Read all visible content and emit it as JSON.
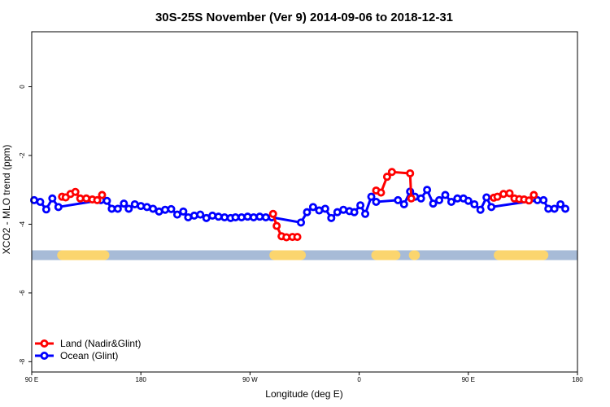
{
  "chart_data": {
    "type": "line",
    "title": "30S-25S November (Ver 9)   2014-09-06 to 2018-12-31",
    "xlabel": "Longitude (deg E)",
    "ylabel": "XCO2 - MLO trend (ppm)",
    "xlim": [
      90,
      540
    ],
    "ylim": [
      -8.3,
      1.6
    ],
    "x_ticks": [
      {
        "value": 90,
        "label": "90 E"
      },
      {
        "value": 180,
        "label": "180"
      },
      {
        "value": 270,
        "label": "90 W"
      },
      {
        "value": 360,
        "label": "0"
      },
      {
        "value": 450,
        "label": "90 E"
      },
      {
        "value": 540,
        "label": "180"
      }
    ],
    "y_ticks": [
      {
        "value": 0,
        "label": "0"
      },
      {
        "value": -2,
        "label": "-2"
      },
      {
        "value": -4,
        "label": "-4"
      },
      {
        "value": -6,
        "label": "-6"
      },
      {
        "value": -8,
        "label": "-8"
      }
    ],
    "land_mask_band": {
      "y": -4.9,
      "ocean_color": "#a7bbd7",
      "land_color": "#fbd56e",
      "land_ranges": [
        [
          115,
          150
        ],
        [
          290,
          312
        ],
        [
          374,
          390
        ],
        [
          405,
          406
        ],
        [
          475,
          512
        ]
      ]
    },
    "legend": {
      "position": "bottom-left"
    },
    "series": [
      {
        "name": "Land (Nadir&Glint)",
        "color": "#ff0000",
        "points": [
          [
            115,
            -3.2
          ],
          [
            118,
            -3.22
          ],
          [
            122,
            -3.12
          ],
          [
            126,
            -3.06
          ],
          [
            130,
            -3.25
          ],
          [
            135,
            -3.25
          ],
          [
            140,
            -3.28
          ],
          [
            144,
            -3.3
          ],
          [
            148,
            -3.15
          ],
          [
            289,
            -3.7
          ],
          [
            292,
            -4.05
          ],
          [
            296,
            -4.35
          ],
          [
            300,
            -4.38
          ],
          [
            305,
            -4.37
          ],
          [
            309,
            -4.37
          ],
          [
            374,
            -3.02
          ],
          [
            378,
            -3.08
          ],
          [
            383,
            -2.62
          ],
          [
            387,
            -2.48
          ],
          [
            402,
            -2.52
          ],
          [
            403,
            -3.25
          ],
          [
            471,
            -3.23
          ],
          [
            474,
            -3.2
          ],
          [
            479,
            -3.12
          ],
          [
            484,
            -3.1
          ],
          [
            488,
            -3.25
          ],
          [
            492,
            -3.27
          ],
          [
            496,
            -3.28
          ],
          [
            500,
            -3.31
          ],
          [
            504,
            -3.15
          ]
        ]
      },
      {
        "name": "Ocean (Glint)",
        "color": "#0000ff",
        "points": [
          [
            92,
            -3.3
          ],
          [
            97,
            -3.35
          ],
          [
            102,
            -3.57
          ],
          [
            107,
            -3.25
          ],
          [
            112,
            -3.5
          ],
          [
            147,
            -3.3
          ],
          [
            152,
            -3.32
          ],
          [
            156,
            -3.55
          ],
          [
            161,
            -3.55
          ],
          [
            166,
            -3.4
          ],
          [
            170,
            -3.55
          ],
          [
            175,
            -3.42
          ],
          [
            180,
            -3.47
          ],
          [
            185,
            -3.5
          ],
          [
            190,
            -3.55
          ],
          [
            195,
            -3.63
          ],
          [
            200,
            -3.58
          ],
          [
            205,
            -3.56
          ],
          [
            210,
            -3.72
          ],
          [
            215,
            -3.63
          ],
          [
            219,
            -3.8
          ],
          [
            224,
            -3.75
          ],
          [
            229,
            -3.72
          ],
          [
            234,
            -3.82
          ],
          [
            239,
            -3.75
          ],
          [
            244,
            -3.78
          ],
          [
            249,
            -3.8
          ],
          [
            254,
            -3.82
          ],
          [
            258,
            -3.8
          ],
          [
            263,
            -3.8
          ],
          [
            268,
            -3.78
          ],
          [
            273,
            -3.8
          ],
          [
            278,
            -3.78
          ],
          [
            283,
            -3.8
          ],
          [
            288,
            -3.8
          ],
          [
            312,
            -3.95
          ],
          [
            317,
            -3.65
          ],
          [
            322,
            -3.5
          ],
          [
            327,
            -3.6
          ],
          [
            332,
            -3.55
          ],
          [
            337,
            -3.82
          ],
          [
            342,
            -3.65
          ],
          [
            347,
            -3.58
          ],
          [
            352,
            -3.62
          ],
          [
            356,
            -3.65
          ],
          [
            361,
            -3.45
          ],
          [
            365,
            -3.7
          ],
          [
            370,
            -3.2
          ],
          [
            374,
            -3.35
          ],
          [
            392,
            -3.3
          ],
          [
            397,
            -3.42
          ],
          [
            402,
            -3.05
          ],
          [
            406,
            -3.2
          ],
          [
            411,
            -3.25
          ],
          [
            416,
            -3.0
          ],
          [
            421,
            -3.4
          ],
          [
            426,
            -3.3
          ],
          [
            431,
            -3.15
          ],
          [
            436,
            -3.35
          ],
          [
            441,
            -3.25
          ],
          [
            446,
            -3.25
          ],
          [
            450,
            -3.32
          ],
          [
            455,
            -3.42
          ],
          [
            460,
            -3.58
          ],
          [
            465,
            -3.22
          ],
          [
            469,
            -3.5
          ],
          [
            507,
            -3.3
          ],
          [
            512,
            -3.3
          ],
          [
            516,
            -3.55
          ],
          [
            521,
            -3.55
          ],
          [
            526,
            -3.42
          ],
          [
            530,
            -3.55
          ]
        ]
      }
    ]
  }
}
